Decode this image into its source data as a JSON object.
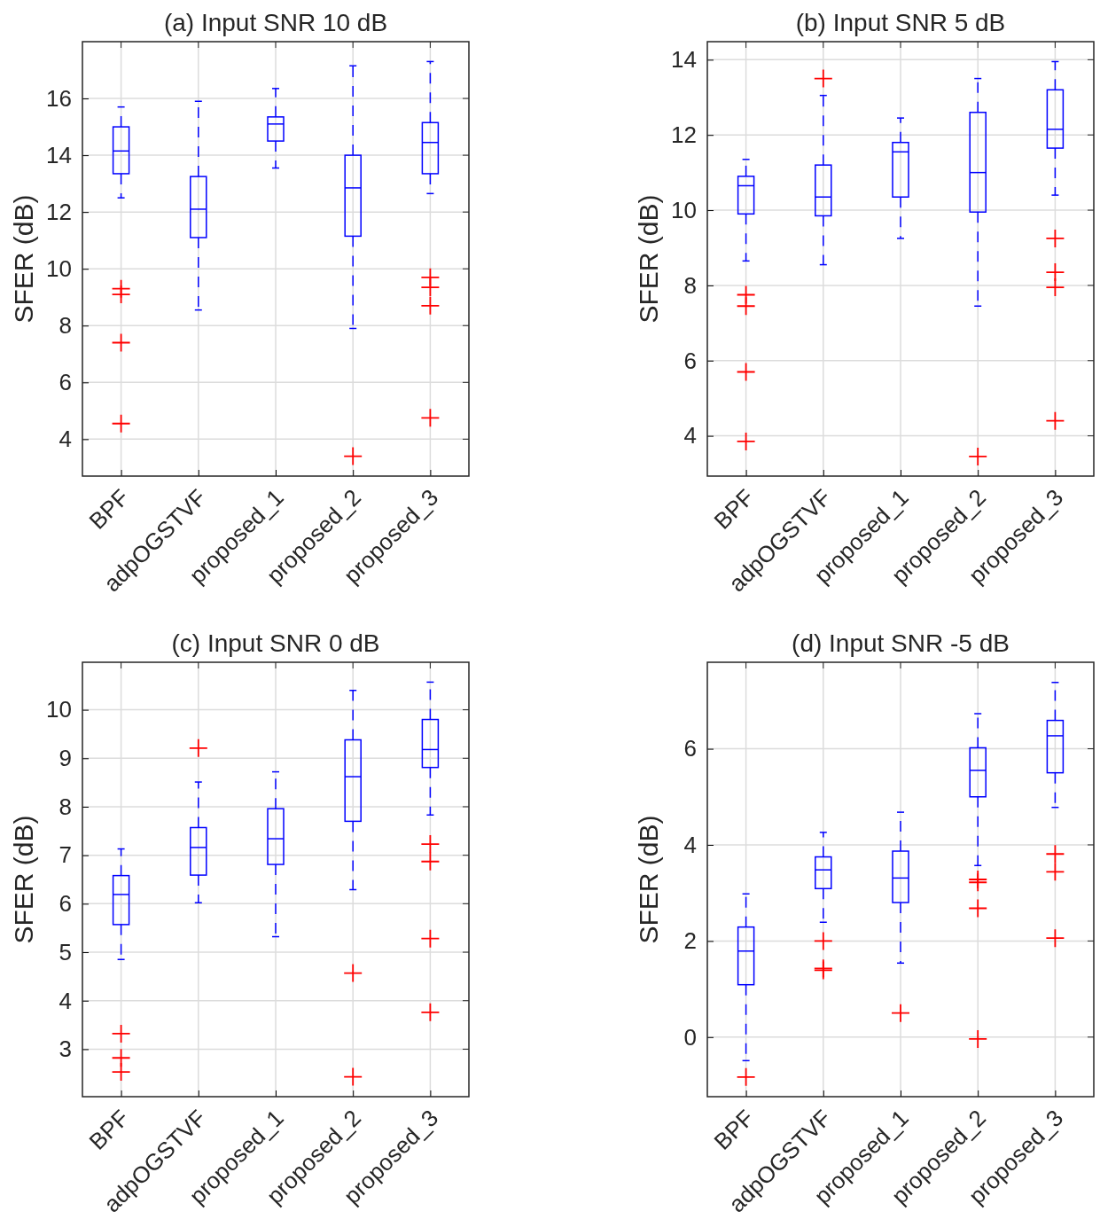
{
  "chart_data": [
    {
      "type": "box",
      "title": "(a) Input SNR 10 dB",
      "ylabel": "SFER (dB)",
      "categories": [
        "BPF",
        "adpOGSTVF",
        "proposed_1",
        "proposed_2",
        "proposed_3"
      ],
      "ylim": [
        2.7,
        18
      ],
      "yticks": [
        4,
        6,
        8,
        10,
        12,
        14,
        16
      ],
      "grid": true,
      "series": [
        {
          "color": "#0000ff",
          "boxes": [
            {
              "low": 12.5,
              "q1": 13.35,
              "median": 14.15,
              "q3": 15.0,
              "high": 15.7,
              "outliers": [
                9.3,
                9.1,
                7.4,
                4.55
              ]
            },
            {
              "low": 8.55,
              "q1": 11.1,
              "median": 12.1,
              "q3": 13.25,
              "high": 15.9
            },
            {
              "low": 13.55,
              "q1": 14.5,
              "median": 15.1,
              "q3": 15.35,
              "high": 16.35
            },
            {
              "low": 7.9,
              "q1": 11.15,
              "median": 12.85,
              "q3": 14.0,
              "high": 17.15,
              "outliers": [
                3.4
              ]
            },
            {
              "low": 12.65,
              "q1": 13.35,
              "median": 14.45,
              "q3": 15.15,
              "high": 17.3,
              "outliers": [
                9.7,
                9.35,
                8.7,
                4.75
              ]
            }
          ]
        }
      ]
    },
    {
      "type": "box",
      "title": "(b) Input SNR 5 dB",
      "ylabel": "SFER (dB)",
      "categories": [
        "BPF",
        "adpOGSTVF",
        "proposed_1",
        "proposed_2",
        "proposed_3"
      ],
      "ylim": [
        2.93,
        14.48
      ],
      "yticks": [
        4,
        6,
        8,
        10,
        12,
        14
      ],
      "grid": true,
      "series": [
        {
          "color": "#0000ff",
          "boxes": [
            {
              "low": 8.65,
              "q1": 9.9,
              "median": 10.65,
              "q3": 10.9,
              "high": 11.35,
              "outliers": [
                7.75,
                7.45,
                5.7,
                3.85
              ]
            },
            {
              "low": 8.55,
              "q1": 9.85,
              "median": 10.35,
              "q3": 11.2,
              "high": 13.05,
              "outliers": [
                13.5
              ]
            },
            {
              "low": 9.25,
              "q1": 10.35,
              "median": 11.55,
              "q3": 11.8,
              "high": 12.45
            },
            {
              "low": 7.45,
              "q1": 9.95,
              "median": 11.0,
              "q3": 12.6,
              "high": 13.5,
              "outliers": [
                3.45
              ]
            },
            {
              "low": 10.4,
              "q1": 11.65,
              "median": 12.15,
              "q3": 13.2,
              "high": 13.95,
              "outliers": [
                9.25,
                8.35,
                7.95,
                4.4
              ]
            }
          ]
        }
      ]
    },
    {
      "type": "box",
      "title": "(c) Input SNR 0 dB",
      "ylabel": "SFER (dB)",
      "categories": [
        "BPF",
        "adpOGSTVF",
        "proposed_1",
        "proposed_2",
        "proposed_3"
      ],
      "ylim": [
        2.02,
        10.98
      ],
      "yticks": [
        3,
        4,
        5,
        6,
        7,
        8,
        9,
        10
      ],
      "grid": true,
      "series": [
        {
          "color": "#0000ff",
          "boxes": [
            {
              "low": 4.85,
              "q1": 5.57,
              "median": 6.19,
              "q3": 6.58,
              "high": 7.13,
              "outliers": [
                3.32,
                2.82,
                2.53
              ]
            },
            {
              "low": 6.02,
              "q1": 6.59,
              "median": 7.16,
              "q3": 7.57,
              "high": 8.51,
              "outliers": [
                9.21
              ]
            },
            {
              "low": 5.32,
              "q1": 6.81,
              "median": 7.34,
              "q3": 7.96,
              "high": 8.72
            },
            {
              "low": 6.29,
              "q1": 7.7,
              "median": 8.62,
              "q3": 9.38,
              "high": 10.4,
              "outliers": [
                4.57,
                2.43
              ]
            },
            {
              "low": 7.83,
              "q1": 8.81,
              "median": 9.18,
              "q3": 9.8,
              "high": 10.57,
              "outliers": [
                7.23,
                6.87,
                5.28,
                3.76
              ]
            }
          ]
        }
      ]
    },
    {
      "type": "box",
      "title": "(d) Input SNR -5 dB",
      "ylabel": "SFER (dB)",
      "categories": [
        "BPF",
        "adpOGSTVF",
        "proposed_1",
        "proposed_2",
        "proposed_3"
      ],
      "ylim": [
        -1.24,
        7.8
      ],
      "yticks": [
        0,
        2,
        4,
        6
      ],
      "grid": true,
      "series": [
        {
          "color": "#0000ff",
          "boxes": [
            {
              "low": -0.49,
              "q1": 1.09,
              "median": 1.79,
              "q3": 2.29,
              "high": 2.98,
              "outliers": [
                -0.83
              ]
            },
            {
              "low": 2.39,
              "q1": 3.09,
              "median": 3.48,
              "q3": 3.75,
              "high": 4.26,
              "outliers": [
                2.0,
                1.43,
                1.39
              ]
            },
            {
              "low": 1.54,
              "q1": 2.8,
              "median": 3.31,
              "q3": 3.87,
              "high": 4.68,
              "outliers": [
                0.5
              ]
            },
            {
              "low": 3.57,
              "q1": 5.0,
              "median": 5.55,
              "q3": 6.02,
              "high": 6.73,
              "outliers": [
                3.28,
                3.22,
                2.68,
                -0.04
              ]
            },
            {
              "low": 4.78,
              "q1": 5.5,
              "median": 6.27,
              "q3": 6.59,
              "high": 7.38,
              "outliers": [
                3.81,
                3.44,
                2.06
              ]
            }
          ]
        }
      ]
    }
  ]
}
